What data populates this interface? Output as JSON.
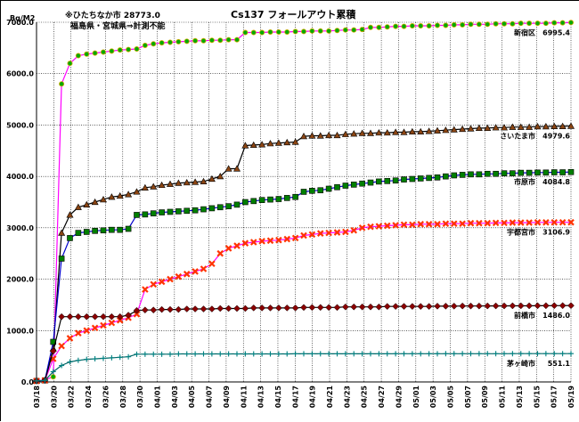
{
  "chart_data": {
    "type": "line",
    "title": "Cs137  フォールアウト累積",
    "ylabel": "Bq/M2",
    "notes": [
      "※ひたちなか市  28773.0",
      "福島県・宮城県⇒計測不能"
    ],
    "ylim": [
      0,
      7000
    ],
    "y_ticks": [
      "0.0",
      "1000.0",
      "2000.0",
      "3000.0",
      "4000.0",
      "5000.0",
      "6000.0",
      "7000.0"
    ],
    "x_ticks": [
      "03/18",
      "03/20",
      "03/22",
      "03/24",
      "03/26",
      "03/28",
      "03/30",
      "04/01",
      "04/03",
      "04/05",
      "04/07",
      "04/09",
      "04/11",
      "04/13",
      "04/15",
      "04/17",
      "04/19",
      "04/21",
      "04/23",
      "04/25",
      "04/27",
      "04/29",
      "05/01",
      "05/03",
      "05/05",
      "05/07",
      "05/09",
      "05/11",
      "05/13",
      "05/15",
      "05/17",
      "05/19"
    ],
    "grid": true,
    "series": [
      {
        "name": "新宿区",
        "label_value": "6995.4",
        "color": "#ff00ff",
        "marker": "dot",
        "marker_color": "#00aa00",
        "marker_edge": "#ccaa00",
        "values": [
          20,
          40,
          100,
          5800,
          6200,
          6350,
          6380,
          6400,
          6420,
          6440,
          6460,
          6470,
          6480,
          6550,
          6580,
          6600,
          6610,
          6620,
          6630,
          6640,
          6640,
          6650,
          6650,
          6660,
          6660,
          6800,
          6800,
          6800,
          6810,
          6810,
          6810,
          6820,
          6820,
          6830,
          6830,
          6830,
          6840,
          6850,
          6850,
          6860,
          6900,
          6900,
          6910,
          6920,
          6920,
          6930,
          6930,
          6930,
          6940,
          6940,
          6950,
          6950,
          6960,
          6960,
          6960,
          6970,
          6970,
          6970,
          6980,
          6980,
          6980,
          6980,
          6990,
          6990,
          6995.4
        ]
      },
      {
        "name": "さいたま市",
        "label_value": "4979.6",
        "color": "#000000",
        "marker": "triangle",
        "marker_color": "#8b4513",
        "values": [
          20,
          30,
          650,
          2900,
          3250,
          3400,
          3450,
          3500,
          3550,
          3600,
          3620,
          3650,
          3700,
          3780,
          3800,
          3830,
          3850,
          3870,
          3880,
          3890,
          3900,
          3950,
          4000,
          4150,
          4150,
          4600,
          4610,
          4620,
          4640,
          4650,
          4660,
          4670,
          4780,
          4790,
          4790,
          4800,
          4800,
          4820,
          4830,
          4840,
          4840,
          4850,
          4850,
          4860,
          4860,
          4870,
          4870,
          4880,
          4890,
          4900,
          4910,
          4920,
          4930,
          4940,
          4940,
          4950,
          4950,
          4960,
          4960,
          4960,
          4970,
          4970,
          4975,
          4975,
          4979.6
        ]
      },
      {
        "name": "市原市",
        "label_value": "4084.8",
        "color": "#0000cc",
        "marker": "square",
        "marker_color": "#007f00",
        "values": [
          20,
          30,
          780,
          2400,
          2800,
          2900,
          2920,
          2940,
          2950,
          2960,
          2960,
          2980,
          3250,
          3260,
          3280,
          3300,
          3310,
          3320,
          3330,
          3340,
          3360,
          3380,
          3400,
          3420,
          3450,
          3500,
          3520,
          3540,
          3550,
          3560,
          3580,
          3600,
          3700,
          3720,
          3730,
          3760,
          3790,
          3820,
          3840,
          3860,
          3880,
          3900,
          3910,
          3920,
          3940,
          3950,
          3960,
          3970,
          3980,
          4000,
          4020,
          4030,
          4040,
          4040,
          4050,
          4050,
          4060,
          4060,
          4070,
          4070,
          4075,
          4075,
          4080,
          4080,
          4084.8
        ]
      },
      {
        "name": "宇都宮市",
        "label_value": "3106.9",
        "color": "#ff00ff",
        "marker": "x",
        "marker_color": "#ff3300",
        "values": [
          20,
          30,
          450,
          700,
          850,
          950,
          1000,
          1050,
          1100,
          1150,
          1200,
          1250,
          1320,
          1800,
          1900,
          1950,
          2000,
          2050,
          2100,
          2150,
          2200,
          2300,
          2500,
          2600,
          2650,
          2700,
          2720,
          2740,
          2750,
          2760,
          2780,
          2800,
          2850,
          2870,
          2890,
          2900,
          2910,
          2920,
          2950,
          3000,
          3020,
          3030,
          3040,
          3050,
          3060,
          3060,
          3070,
          3070,
          3070,
          3080,
          3080,
          3080,
          3090,
          3090,
          3090,
          3095,
          3095,
          3100,
          3100,
          3100,
          3105,
          3105,
          3106,
          3106,
          3106.9
        ]
      },
      {
        "name": "前橋市",
        "label_value": "1486.0",
        "color": "#000000",
        "marker": "diamond",
        "marker_color": "#8b0000",
        "values": [
          20,
          30,
          600,
          1270,
          1270,
          1270,
          1270,
          1270,
          1270,
          1270,
          1270,
          1300,
          1390,
          1400,
          1400,
          1410,
          1410,
          1410,
          1420,
          1420,
          1420,
          1420,
          1430,
          1430,
          1430,
          1430,
          1440,
          1440,
          1440,
          1440,
          1440,
          1440,
          1450,
          1450,
          1450,
          1450,
          1450,
          1460,
          1460,
          1460,
          1460,
          1460,
          1470,
          1470,
          1470,
          1470,
          1470,
          1470,
          1475,
          1475,
          1475,
          1478,
          1478,
          1478,
          1480,
          1480,
          1480,
          1482,
          1482,
          1482,
          1484,
          1484,
          1485,
          1485,
          1486.0
        ]
      },
      {
        "name": "茅ヶ崎市",
        "label_value": "551.1",
        "color": "#006666",
        "marker": "plus",
        "marker_color": "#008080",
        "values": [
          20,
          30,
          200,
          320,
          390,
          420,
          440,
          450,
          460,
          470,
          480,
          490,
          540,
          540,
          540,
          540,
          540,
          545,
          545,
          545,
          545,
          545,
          545,
          545,
          545,
          545,
          545,
          545,
          545,
          545,
          545,
          547,
          547,
          547,
          547,
          547,
          547,
          548,
          548,
          548,
          548,
          548,
          548,
          549,
          549,
          549,
          549,
          549,
          549,
          550,
          550,
          550,
          550,
          550,
          550,
          550,
          550,
          551,
          551,
          551,
          551,
          551,
          551,
          551,
          551.1
        ]
      }
    ]
  }
}
